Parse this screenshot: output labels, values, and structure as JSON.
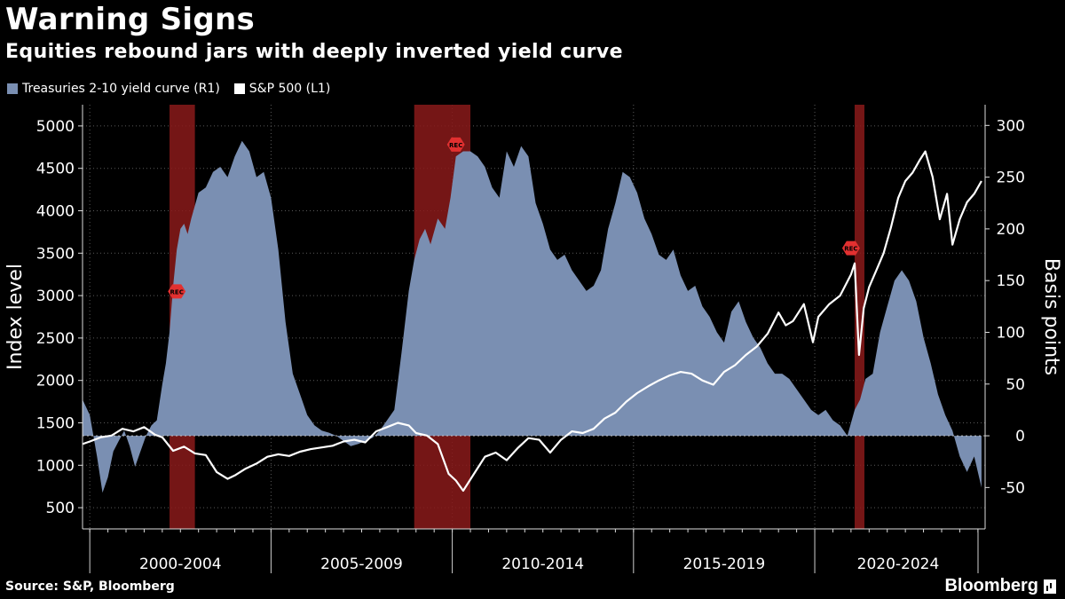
{
  "header": {
    "title": "Warning Signs",
    "subtitle": "Equities rebound jars with deeply inverted yield curve"
  },
  "legend": {
    "curve_label": "Treasuries 2-10 yield curve (R1)",
    "spx_label": "S&P 500  (L1)"
  },
  "footer": {
    "source": "Source: S&P, Bloomberg",
    "brand": "Bloomberg"
  },
  "colors": {
    "background": "#000000",
    "curve_fill": "#7a8fb2",
    "spx_line": "#ffffff",
    "recession": "#8a1a1a",
    "rec_marker": "#e23030",
    "grid": "#5a5a5a"
  },
  "chart_data": {
    "type": "area",
    "title": "Warning Signs",
    "left_axis": {
      "label": "Index level",
      "ticks": [
        500,
        1000,
        1500,
        2000,
        2500,
        3000,
        3500,
        4000,
        4500,
        5000
      ],
      "range": [
        250,
        5250
      ]
    },
    "right_axis": {
      "label": "Basis points",
      "ticks": [
        -50,
        0,
        50,
        100,
        150,
        200,
        250,
        300
      ],
      "range": [
        -90,
        320
      ]
    },
    "x_range": [
      1998.8,
      2023.7
    ],
    "x_period_labels": [
      "2000-2004",
      "2005-2009",
      "2010-2014",
      "2015-2019",
      "2020-2024"
    ],
    "recessions": [
      {
        "start": 2001.2,
        "end": 2001.9
      },
      {
        "start": 2007.95,
        "end": 2009.5
      },
      {
        "start": 2020.1,
        "end": 2020.37
      }
    ],
    "rec_markers": [
      {
        "label": "REC",
        "x": 2001.4,
        "value": 3050
      },
      {
        "label": "REC",
        "x": 2009.1,
        "value": 4780
      },
      {
        "label": "REC",
        "x": 2020.0,
        "value": 3560
      }
    ],
    "series": [
      {
        "name": "Treasuries 2-10 yield curve (R1)",
        "axis": "right",
        "style": "area",
        "x": [
          1998.8,
          1999.0,
          1999.2,
          1999.35,
          1999.5,
          1999.65,
          1999.8,
          1999.95,
          2000.1,
          2000.25,
          2000.4,
          2000.55,
          2000.7,
          2000.85,
          2001.0,
          2001.1,
          2001.2,
          2001.3,
          2001.4,
          2001.5,
          2001.6,
          2001.7,
          2001.8,
          2002.0,
          2002.2,
          2002.4,
          2002.6,
          2002.8,
          2003.0,
          2003.2,
          2003.4,
          2003.6,
          2003.8,
          2004.0,
          2004.2,
          2004.4,
          2004.6,
          2004.8,
          2005.0,
          2005.2,
          2005.4,
          2005.6,
          2005.8,
          2006.0,
          2006.2,
          2006.4,
          2006.6,
          2006.8,
          2007.0,
          2007.2,
          2007.4,
          2007.6,
          2007.8,
          2007.95,
          2008.1,
          2008.25,
          2008.4,
          2008.6,
          2008.8,
          2008.95,
          2009.1,
          2009.3,
          2009.5,
          2009.7,
          2009.9,
          2010.1,
          2010.3,
          2010.5,
          2010.7,
          2010.9,
          2011.1,
          2011.3,
          2011.5,
          2011.7,
          2011.9,
          2012.1,
          2012.3,
          2012.5,
          2012.7,
          2012.9,
          2013.1,
          2013.3,
          2013.5,
          2013.7,
          2013.9,
          2014.1,
          2014.3,
          2014.5,
          2014.7,
          2014.9,
          2015.1,
          2015.3,
          2015.5,
          2015.7,
          2015.9,
          2016.1,
          2016.3,
          2016.5,
          2016.7,
          2016.9,
          2017.1,
          2017.3,
          2017.5,
          2017.7,
          2017.9,
          2018.1,
          2018.3,
          2018.5,
          2018.7,
          2018.9,
          2019.1,
          2019.3,
          2019.5,
          2019.7,
          2019.9,
          2020.1,
          2020.25,
          2020.4,
          2020.6,
          2020.8,
          2021.0,
          2021.2,
          2021.4,
          2021.6,
          2021.8,
          2022.0,
          2022.2,
          2022.4,
          2022.6,
          2022.8,
          2023.0,
          2023.2,
          2023.4,
          2023.6
        ],
        "values": [
          35,
          20,
          -20,
          -55,
          -40,
          -15,
          -5,
          5,
          -10,
          -30,
          -15,
          0,
          10,
          15,
          50,
          70,
          100,
          145,
          180,
          200,
          205,
          195,
          210,
          235,
          240,
          255,
          260,
          250,
          270,
          285,
          275,
          250,
          255,
          230,
          180,
          110,
          60,
          40,
          20,
          10,
          5,
          3,
          0,
          -5,
          -10,
          -8,
          -5,
          -2,
          5,
          15,
          25,
          80,
          140,
          170,
          190,
          200,
          185,
          210,
          200,
          230,
          270,
          275,
          275,
          270,
          260,
          240,
          230,
          275,
          260,
          280,
          270,
          225,
          205,
          180,
          170,
          175,
          160,
          150,
          140,
          145,
          160,
          200,
          225,
          255,
          250,
          235,
          210,
          195,
          175,
          170,
          180,
          155,
          140,
          145,
          125,
          115,
          100,
          90,
          120,
          130,
          110,
          95,
          85,
          70,
          60,
          60,
          55,
          45,
          35,
          25,
          20,
          25,
          15,
          10,
          0,
          25,
          35,
          55,
          60,
          100,
          125,
          150,
          160,
          150,
          130,
          95,
          70,
          40,
          20,
          5,
          -20,
          -35,
          -20,
          -50
        ]
      },
      {
        "name": "S&P 500  (L1)",
        "axis": "left",
        "style": "line",
        "x": [
          1998.8,
          1999.0,
          1999.3,
          1999.6,
          1999.9,
          2000.2,
          2000.5,
          2000.8,
          2001.0,
          2001.3,
          2001.6,
          2001.9,
          2002.2,
          2002.5,
          2002.8,
          2003.0,
          2003.3,
          2003.6,
          2003.9,
          2004.2,
          2004.5,
          2004.8,
          2005.1,
          2005.4,
          2005.7,
          2006.0,
          2006.3,
          2006.6,
          2006.9,
          2007.2,
          2007.5,
          2007.8,
          2008.0,
          2008.3,
          2008.6,
          2008.9,
          2009.1,
          2009.3,
          2009.6,
          2009.9,
          2010.2,
          2010.5,
          2010.8,
          2011.1,
          2011.4,
          2011.7,
          2012.0,
          2012.3,
          2012.6,
          2012.9,
          2013.2,
          2013.5,
          2013.8,
          2014.1,
          2014.4,
          2014.7,
          2015.0,
          2015.3,
          2015.6,
          2015.9,
          2016.2,
          2016.5,
          2016.8,
          2017.1,
          2017.4,
          2017.7,
          2018.0,
          2018.2,
          2018.4,
          2018.7,
          2018.95,
          2019.1,
          2019.4,
          2019.7,
          2020.0,
          2020.1,
          2020.22,
          2020.35,
          2020.5,
          2020.7,
          2020.9,
          2021.1,
          2021.3,
          2021.5,
          2021.7,
          2021.9,
          2022.05,
          2022.25,
          2022.45,
          2022.65,
          2022.8,
          2023.0,
          2023.2,
          2023.4,
          2023.6
        ],
        "values": [
          1250,
          1280,
          1330,
          1350,
          1430,
          1400,
          1450,
          1360,
          1330,
          1170,
          1220,
          1140,
          1120,
          920,
          840,
          880,
          960,
          1020,
          1100,
          1130,
          1110,
          1160,
          1190,
          1210,
          1230,
          1280,
          1300,
          1270,
          1400,
          1450,
          1500,
          1470,
          1380,
          1350,
          1250,
          900,
          820,
          700,
          900,
          1100,
          1150,
          1060,
          1200,
          1320,
          1300,
          1150,
          1300,
          1400,
          1380,
          1430,
          1550,
          1620,
          1750,
          1850,
          1930,
          2000,
          2060,
          2100,
          2080,
          2000,
          1950,
          2100,
          2180,
          2300,
          2400,
          2550,
          2800,
          2650,
          2700,
          2900,
          2450,
          2750,
          2900,
          3000,
          3250,
          3380,
          2300,
          2850,
          3100,
          3300,
          3500,
          3800,
          4150,
          4350,
          4450,
          4600,
          4700,
          4400,
          3900,
          4200,
          3600,
          3900,
          4100,
          4200,
          4350
        ]
      }
    ]
  }
}
